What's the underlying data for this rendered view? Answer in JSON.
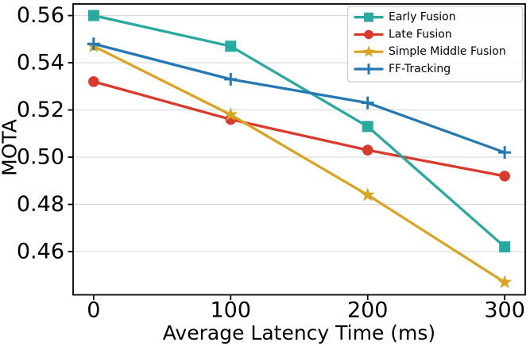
{
  "chart_data": {
    "type": "line",
    "title": "",
    "xlabel": "Average Latency Time (ms)",
    "ylabel": "MOTA",
    "x": [
      0,
      100,
      200,
      300
    ],
    "xticks": [
      0,
      100,
      200,
      300
    ],
    "yticks": [
      0.46,
      0.48,
      0.5,
      0.52,
      0.54,
      0.56
    ],
    "xlim": [
      -15,
      315
    ],
    "ylim": [
      0.4417,
      0.5649
    ],
    "grid": "horizontal-only",
    "grid_color": "#d9d9d9",
    "spine_color": "#000000",
    "legend_position": "upper-right",
    "series": [
      {
        "name": "Early Fusion",
        "color": "#2aa9a0",
        "marker": "square",
        "values": [
          0.56,
          0.547,
          0.513,
          0.462
        ]
      },
      {
        "name": "Late Fusion",
        "color": "#d93a2c",
        "marker": "circle",
        "values": [
          0.532,
          0.516,
          0.503,
          0.492
        ]
      },
      {
        "name": "Simple Middle Fusion",
        "color": "#d9a521",
        "marker": "star",
        "values": [
          0.547,
          0.518,
          0.484,
          0.447
        ]
      },
      {
        "name": "FF-Tracking",
        "color": "#2478b4",
        "marker": "plus",
        "values": [
          0.548,
          0.533,
          0.523,
          0.502
        ]
      }
    ],
    "draw_order": [
      1,
      2,
      0,
      3
    ]
  }
}
